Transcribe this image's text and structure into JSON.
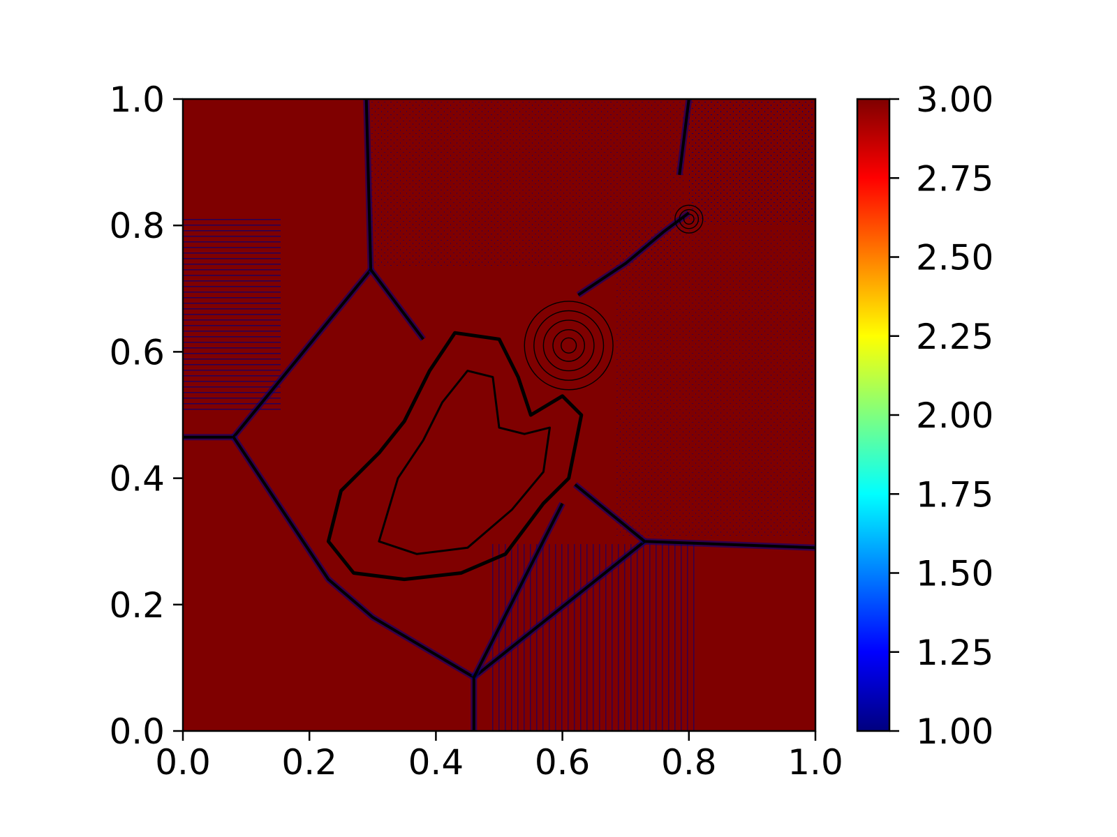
{
  "chart_data": {
    "type": "heatmap",
    "title": "",
    "xlabel": "",
    "ylabel": "",
    "xlim": [
      0.0,
      1.0
    ],
    "ylim": [
      0.0,
      1.0
    ],
    "grid": false,
    "x_ticks": [
      "0.0",
      "0.2",
      "0.4",
      "0.6",
      "0.8",
      "1.0"
    ],
    "x_tick_values": [
      0.0,
      0.2,
      0.4,
      0.6,
      0.8,
      1.0
    ],
    "y_ticks": [
      "0.0",
      "0.2",
      "0.4",
      "0.6",
      "0.8",
      "1.0"
    ],
    "y_tick_values": [
      0.0,
      0.2,
      0.4,
      0.6,
      0.8,
      1.0
    ],
    "colorbar": {
      "colormap": "jet",
      "range": [
        1.0,
        3.0
      ],
      "ticks": [
        "1.00",
        "1.25",
        "1.50",
        "1.75",
        "2.00",
        "2.25",
        "2.50",
        "2.75",
        "3.00"
      ],
      "tick_values": [
        1.0,
        1.25,
        1.5,
        1.75,
        2.0,
        2.25,
        2.5,
        2.75,
        3.0
      ],
      "colors": [
        "#00007f",
        "#0000ff",
        "#007fff",
        "#00ffff",
        "#7fff7f",
        "#ffff00",
        "#ff7f00",
        "#ff0000",
        "#7f0000"
      ]
    },
    "field_colors": {
      "background": "#7f0000",
      "low_value_specks": "#00007f",
      "contour_lines": "#000000"
    },
    "shock_lines": [
      {
        "name": "upper-left-vertical",
        "points": [
          [
            0.29,
            1.0
          ],
          [
            0.297,
            0.73
          ]
        ]
      },
      {
        "name": "left-horizontal",
        "points": [
          [
            0.0,
            0.465
          ],
          [
            0.08,
            0.465
          ]
        ]
      },
      {
        "name": "left-upper-diagonal",
        "points": [
          [
            0.08,
            0.465
          ],
          [
            0.297,
            0.73
          ]
        ]
      },
      {
        "name": "upper-to-jet",
        "points": [
          [
            0.297,
            0.73
          ],
          [
            0.38,
            0.62
          ]
        ]
      },
      {
        "name": "lower-left-arc",
        "points": [
          [
            0.08,
            0.465
          ],
          [
            0.17,
            0.33
          ],
          [
            0.23,
            0.24
          ],
          [
            0.3,
            0.18
          ],
          [
            0.46,
            0.085
          ]
        ]
      },
      {
        "name": "bottom-vertical",
        "points": [
          [
            0.46,
            0.085
          ],
          [
            0.46,
            0.0
          ]
        ]
      },
      {
        "name": "bottom-diagonal",
        "points": [
          [
            0.46,
            0.085
          ],
          [
            0.73,
            0.3
          ]
        ]
      },
      {
        "name": "bottom-to-jet",
        "points": [
          [
            0.46,
            0.085
          ],
          [
            0.6,
            0.36
          ]
        ]
      },
      {
        "name": "right-horizontal",
        "points": [
          [
            0.73,
            0.3
          ],
          [
            1.0,
            0.29
          ]
        ]
      },
      {
        "name": "jet-to-right",
        "points": [
          [
            0.62,
            0.39
          ],
          [
            0.73,
            0.3
          ]
        ]
      },
      {
        "name": "upper-right-vertical",
        "points": [
          [
            0.8,
            1.0
          ],
          [
            0.785,
            0.88
          ]
        ]
      },
      {
        "name": "mushroom-stem",
        "points": [
          [
            0.625,
            0.69
          ],
          [
            0.7,
            0.74
          ],
          [
            0.76,
            0.79
          ],
          [
            0.8,
            0.82
          ]
        ]
      }
    ],
    "jet_outline": [
      [
        0.23,
        0.3
      ],
      [
        0.25,
        0.38
      ],
      [
        0.31,
        0.44
      ],
      [
        0.35,
        0.49
      ],
      [
        0.39,
        0.57
      ],
      [
        0.43,
        0.63
      ],
      [
        0.5,
        0.62
      ],
      [
        0.53,
        0.56
      ],
      [
        0.55,
        0.5
      ],
      [
        0.6,
        0.53
      ],
      [
        0.63,
        0.5
      ],
      [
        0.61,
        0.4
      ],
      [
        0.57,
        0.36
      ],
      [
        0.51,
        0.28
      ],
      [
        0.44,
        0.25
      ],
      [
        0.35,
        0.24
      ],
      [
        0.27,
        0.25
      ]
    ],
    "jet_inner": [
      [
        0.31,
        0.3
      ],
      [
        0.34,
        0.4
      ],
      [
        0.38,
        0.46
      ],
      [
        0.41,
        0.52
      ],
      [
        0.45,
        0.57
      ],
      [
        0.49,
        0.56
      ],
      [
        0.5,
        0.48
      ],
      [
        0.54,
        0.47
      ],
      [
        0.58,
        0.48
      ],
      [
        0.57,
        0.41
      ],
      [
        0.52,
        0.35
      ],
      [
        0.45,
        0.29
      ],
      [
        0.37,
        0.28
      ]
    ],
    "vortex_rings": [
      {
        "cx": 0.61,
        "cy": 0.61,
        "r": [
          0.012,
          0.025,
          0.04,
          0.055,
          0.07
        ]
      },
      {
        "cx": 0.8,
        "cy": 0.81,
        "r": [
          0.008,
          0.015,
          0.022
        ]
      }
    ]
  }
}
